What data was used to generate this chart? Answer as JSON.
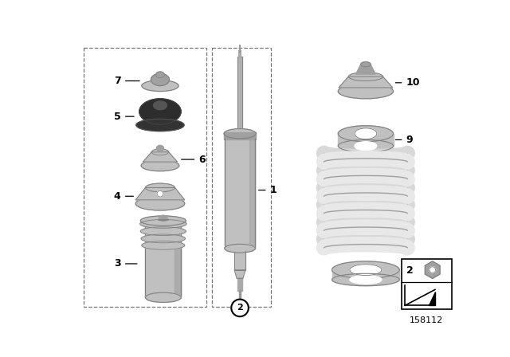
{
  "bg_color": "#ffffff",
  "part_color_light": "#c0c0c0",
  "part_color_mid": "#a0a0a0",
  "part_color_dark": "#808080",
  "part_color_black": "#1a1a1a",
  "text_color": "#000000",
  "ref_number": "158112",
  "figsize": [
    6.4,
    4.48
  ],
  "dpi": 100
}
